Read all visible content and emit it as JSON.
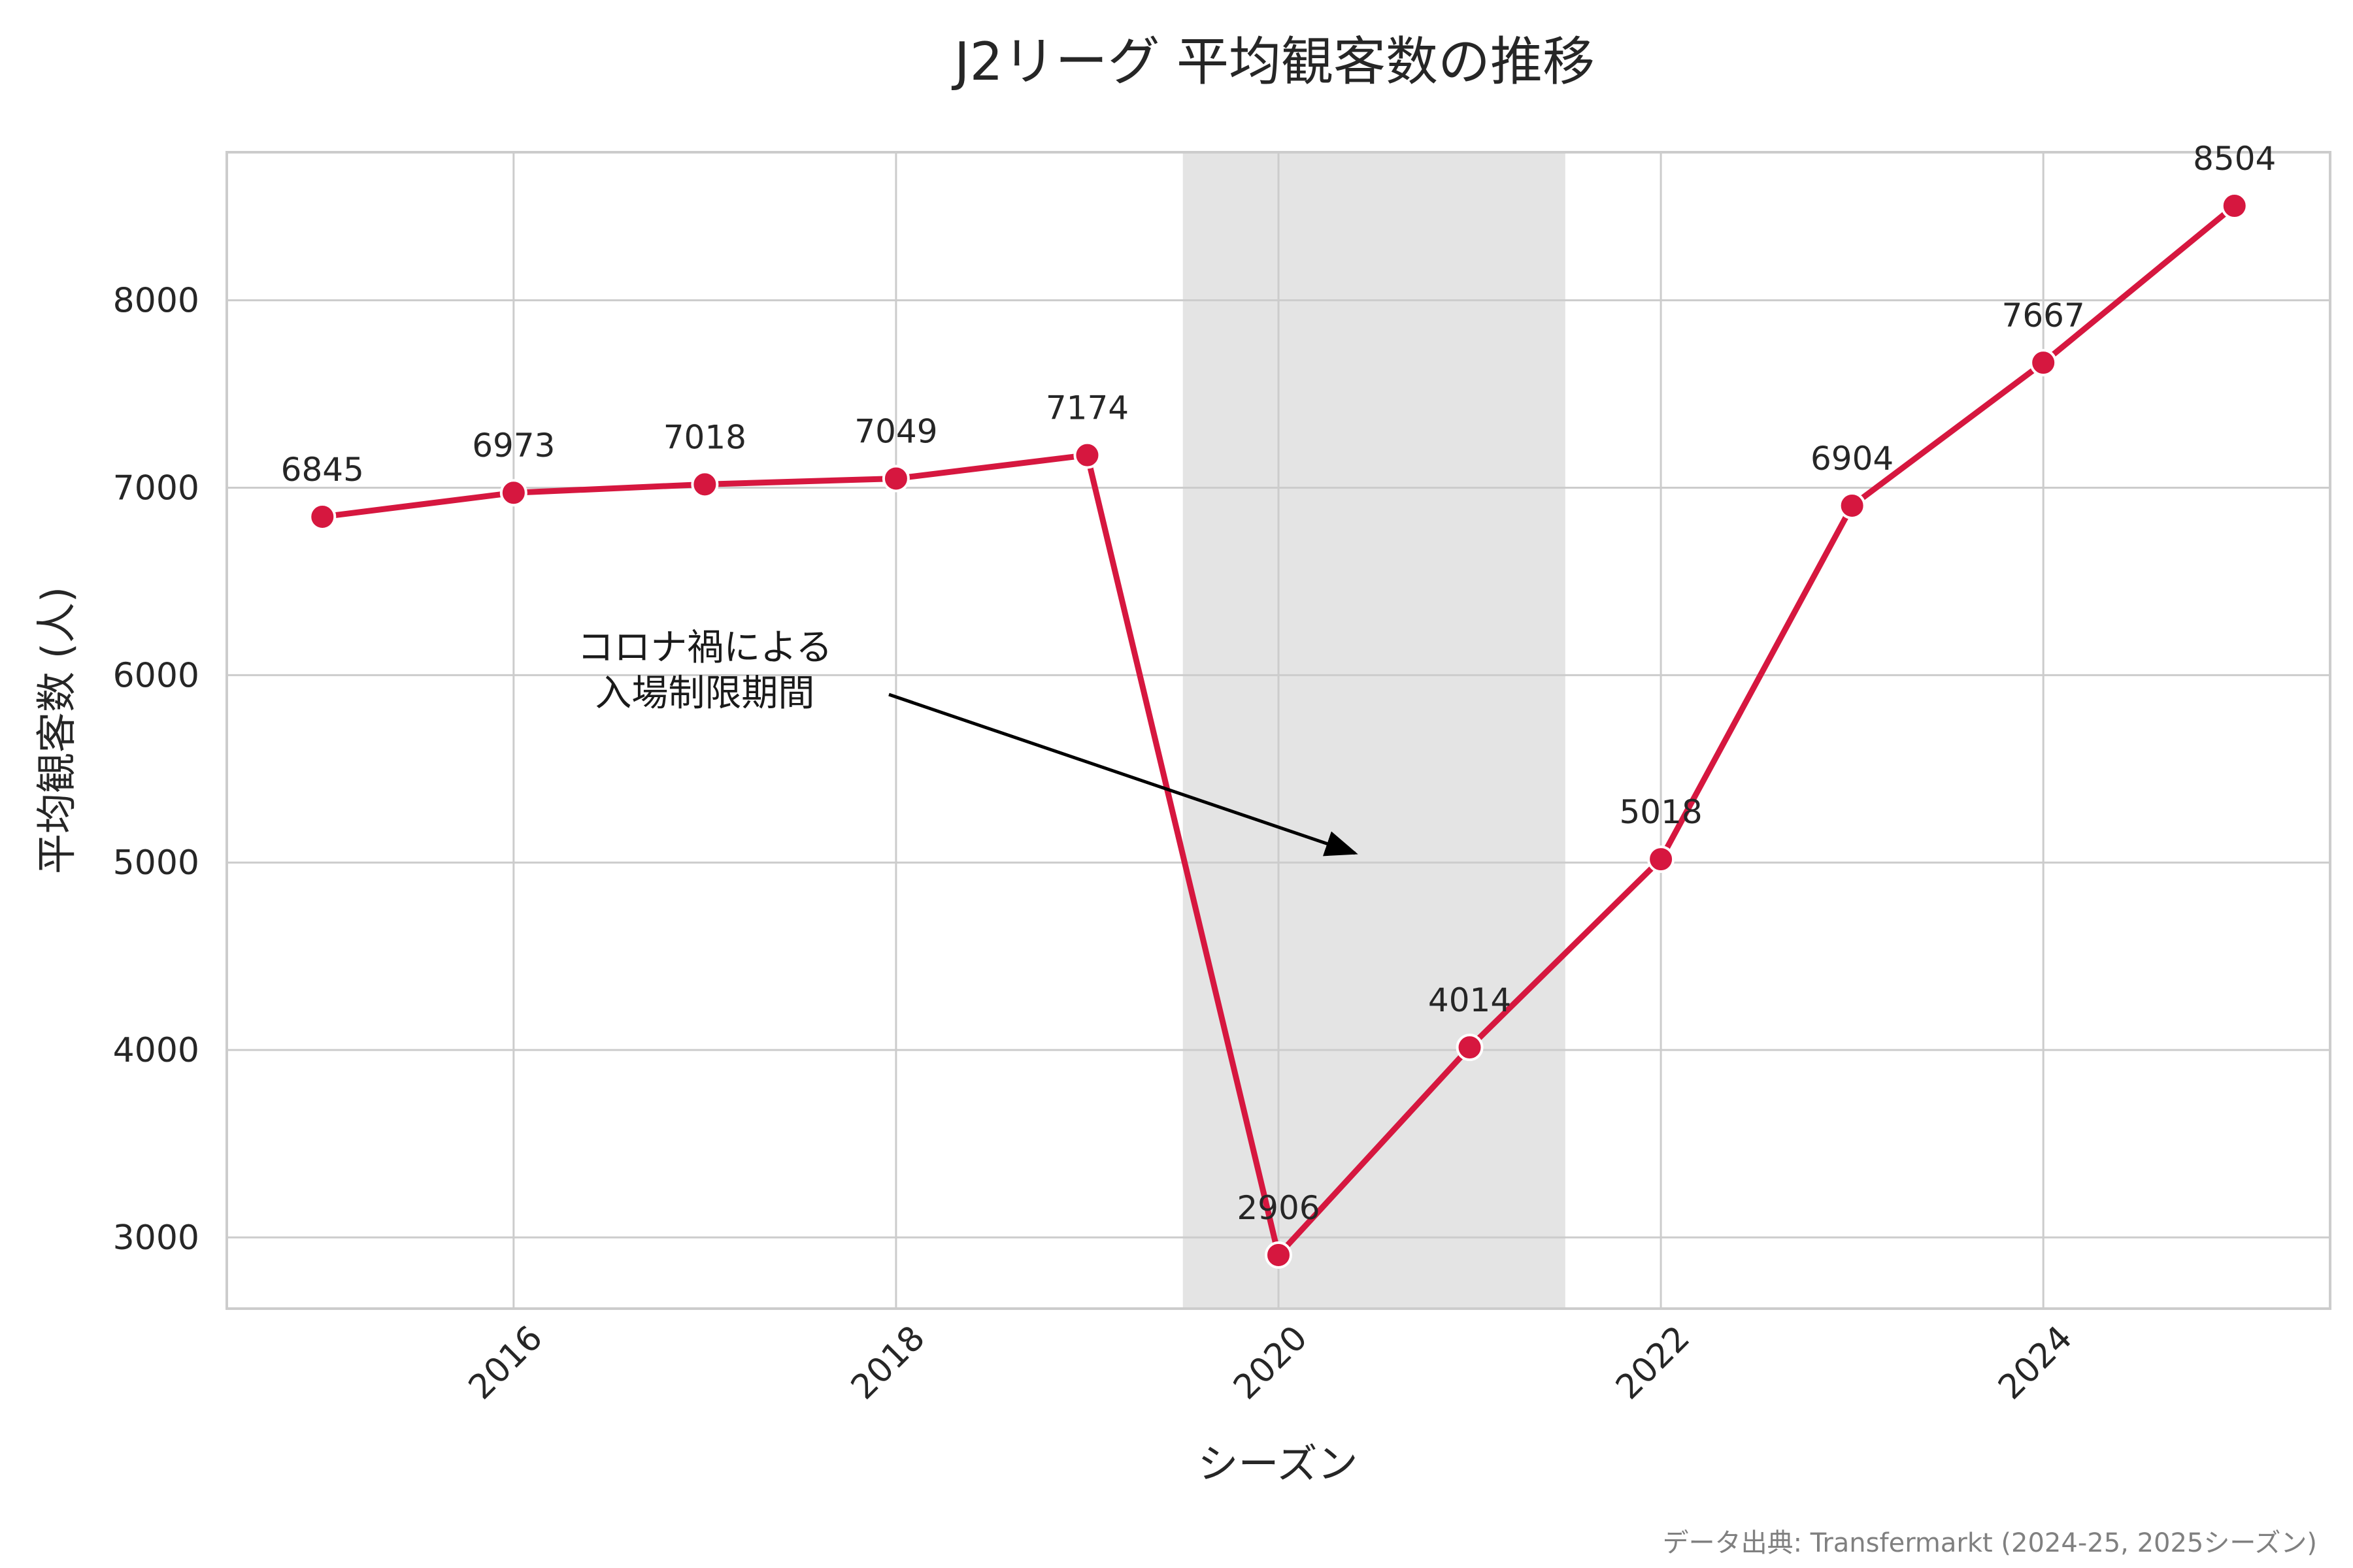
{
  "colors": {
    "line": "#d6173f",
    "point_edge": "#ffffff",
    "shade": "#e4e4e4",
    "grid": "#cccccc",
    "arrow": "#000000"
  },
  "chart_data": {
    "type": "line",
    "title": "J2リーグ 平均観客数の推移",
    "xlabel": "シーズン",
    "ylabel": "平均観客数 (人)",
    "x": [
      2015,
      2016,
      2017,
      2018,
      2019,
      2020,
      2021,
      2022,
      2023,
      2024,
      2025
    ],
    "values": [
      6845,
      6973,
      7018,
      7049,
      7174,
      2906,
      4014,
      5018,
      6904,
      7667,
      8504
    ],
    "data_labels": [
      "6845",
      "6973",
      "7018",
      "7049",
      "7174",
      "2906",
      "4014",
      "5018",
      "6904",
      "7667",
      "8504"
    ],
    "xlim": [
      2014.5,
      2025.5
    ],
    "ylim": [
      2620,
      8790
    ],
    "xticks": [
      2016,
      2018,
      2020,
      2022,
      2024
    ],
    "xtick_labels": [
      "2016",
      "2018",
      "2020",
      "2022",
      "2024"
    ],
    "yticks": [
      3000,
      4000,
      5000,
      6000,
      7000,
      8000
    ],
    "ytick_labels": [
      "3000",
      "4000",
      "5000",
      "6000",
      "7000",
      "8000"
    ],
    "grid": true,
    "shaded_region": {
      "x_start": 2019.5,
      "x_end": 2021.5
    },
    "annotation": {
      "lines": [
        "コロナ禍による",
        "入場制限期間"
      ],
      "text_at": {
        "x": 2017,
        "y": 5900
      },
      "arrow_to": {
        "x": 2020.4,
        "y": 5050
      }
    },
    "source": "データ出典: Transfermarkt (2024-25, 2025シーズン)"
  }
}
